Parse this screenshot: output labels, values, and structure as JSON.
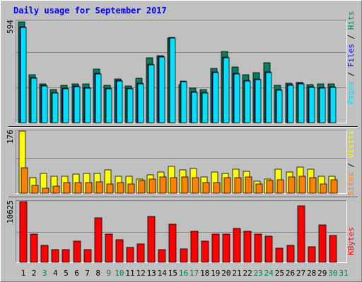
{
  "chart_data": [
    {
      "type": "bar",
      "title": "Daily usage for September 2017",
      "panel": "pages-files-hits",
      "ymax_label": "594",
      "ylim": [
        0,
        594
      ],
      "grid": true,
      "categories": [
        "1",
        "2",
        "3",
        "4",
        "5",
        "6",
        "7",
        "8",
        "9",
        "10",
        "11",
        "12",
        "13",
        "14",
        "15",
        "16",
        "17",
        "18",
        "19",
        "20",
        "21",
        "22",
        "23",
        "24",
        "25",
        "26",
        "27",
        "28",
        "29",
        "30"
      ],
      "series": [
        {
          "name": "Hits",
          "color": "#00805c",
          "values": [
            594,
            283,
            233,
            197,
            222,
            230,
            230,
            318,
            224,
            258,
            220,
            262,
            385,
            396,
            500,
            228,
            205,
            200,
            322,
            422,
            332,
            283,
            296,
            356,
            223,
            235,
            240,
            225,
            232,
            231
          ]
        },
        {
          "name": "Files",
          "color": "#0000ff",
          "values": [
            577,
            279,
            234,
            195,
            220,
            230,
            223,
            307,
            217,
            263,
            219,
            248,
            358,
            404,
            517,
            259,
            200,
            193,
            315,
            399,
            306,
            262,
            273,
            312,
            210,
            238,
            248,
            227,
            223,
            228
          ]
        },
        {
          "name": "Pages",
          "color": "#00e0ff",
          "values": [
            577,
            279,
            234,
            195,
            220,
            230,
            223,
            307,
            217,
            263,
            219,
            248,
            358,
            404,
            517,
            259,
            200,
            193,
            315,
            399,
            306,
            262,
            273,
            312,
            210,
            238,
            248,
            227,
            223,
            228
          ]
        }
      ]
    },
    {
      "type": "bar",
      "panel": "visits-sites",
      "ymax_label": "176",
      "ylim": [
        0,
        176
      ],
      "grid": true,
      "categories": [
        "1",
        "2",
        "3",
        "4",
        "5",
        "6",
        "7",
        "8",
        "9",
        "10",
        "11",
        "12",
        "13",
        "14",
        "15",
        "16",
        "17",
        "18",
        "19",
        "20",
        "21",
        "22",
        "23",
        "24",
        "25",
        "26",
        "27",
        "28",
        "29",
        "30"
      ],
      "series": [
        {
          "name": "Visits",
          "color": "#ffff00",
          "values": [
            176,
            44,
            55,
            48,
            49,
            54,
            55,
            55,
            66,
            49,
            48,
            40,
            52,
            60,
            75,
            65,
            70,
            45,
            60,
            55,
            67,
            61,
            34,
            40,
            67,
            59,
            73,
            67,
            48,
            47
          ]
        },
        {
          "name": "Sites",
          "color": "#ff8000",
          "values": [
            71,
            22,
            13,
            19,
            30,
            29,
            29,
            31,
            25,
            30,
            25,
            36,
            39,
            46,
            44,
            46,
            43,
            29,
            29,
            44,
            44,
            45,
            25,
            35,
            38,
            45,
            47,
            43,
            26,
            38
          ]
        }
      ]
    },
    {
      "type": "bar",
      "panel": "kbytes",
      "ymax_label": "10625",
      "ylim": [
        0,
        10625
      ],
      "grid": true,
      "categories": [
        "1",
        "2",
        "3",
        "4",
        "5",
        "6",
        "7",
        "8",
        "9",
        "10",
        "11",
        "12",
        "13",
        "14",
        "15",
        "16",
        "17",
        "18",
        "19",
        "20",
        "21",
        "22",
        "23",
        "24",
        "25",
        "26",
        "27",
        "28",
        "29",
        "30"
      ],
      "series": [
        {
          "name": "KBytes",
          "color": "#ff0000",
          "values": [
            10625,
            4986,
            2972,
            2167,
            2167,
            3648,
            2167,
            7802,
            4986,
            3916,
            2579,
            3246,
            8052,
            2167,
            6655,
            2311,
            5407,
            3646,
            4986,
            4986,
            5953,
            5406,
            4986,
            4574,
            2458,
            2991,
            9896,
            2703,
            6523,
            4704
          ]
        }
      ]
    }
  ],
  "days": [
    {
      "label": "1",
      "weekend": false
    },
    {
      "label": "2",
      "weekend": false
    },
    {
      "label": "3",
      "weekend": true
    },
    {
      "label": "4",
      "weekend": false
    },
    {
      "label": "5",
      "weekend": false
    },
    {
      "label": "6",
      "weekend": false
    },
    {
      "label": "7",
      "weekend": false
    },
    {
      "label": "8",
      "weekend": false
    },
    {
      "label": "9",
      "weekend": true
    },
    {
      "label": "10",
      "weekend": true
    },
    {
      "label": "11",
      "weekend": false
    },
    {
      "label": "12",
      "weekend": false
    },
    {
      "label": "13",
      "weekend": false
    },
    {
      "label": "14",
      "weekend": false
    },
    {
      "label": "15",
      "weekend": false
    },
    {
      "label": "16",
      "weekend": true
    },
    {
      "label": "17",
      "weekend": true
    },
    {
      "label": "18",
      "weekend": false
    },
    {
      "label": "19",
      "weekend": false
    },
    {
      "label": "20",
      "weekend": false
    },
    {
      "label": "21",
      "weekend": false
    },
    {
      "label": "22",
      "weekend": false
    },
    {
      "label": "23",
      "weekend": true
    },
    {
      "label": "24",
      "weekend": true
    },
    {
      "label": "25",
      "weekend": false
    },
    {
      "label": "26",
      "weekend": false
    },
    {
      "label": "27",
      "weekend": false
    },
    {
      "label": "28",
      "weekend": false
    },
    {
      "label": "29",
      "weekend": false
    },
    {
      "label": "30",
      "weekend": true
    },
    {
      "label": "31",
      "weekend": true
    }
  ],
  "colors": {
    "background": "#c0c0c0",
    "frame_light": "#ffffff",
    "frame_dark": "#808080",
    "title": "#0000ff",
    "weekday_label": "#000000",
    "weekend_label": "#00805c",
    "separator": "#0000ff",
    "ylabel_text": "#000000"
  },
  "legends": {
    "top": [
      {
        "text": "Pages",
        "color": "#00e0ff"
      },
      {
        "text": " / ",
        "color": "#000000"
      },
      {
        "text": "Files",
        "color": "#0000ff"
      },
      {
        "text": " / ",
        "color": "#000000"
      },
      {
        "text": "Hits",
        "color": "#00805c"
      }
    ],
    "middle": [
      {
        "text": "Sites",
        "color": "#ff8000"
      },
      {
        "text": " / ",
        "color": "#000000"
      },
      {
        "text": "Visits",
        "color": "#ffff00"
      }
    ],
    "bottom": [
      {
        "text": "KBytes",
        "color": "#ff0000"
      }
    ]
  }
}
